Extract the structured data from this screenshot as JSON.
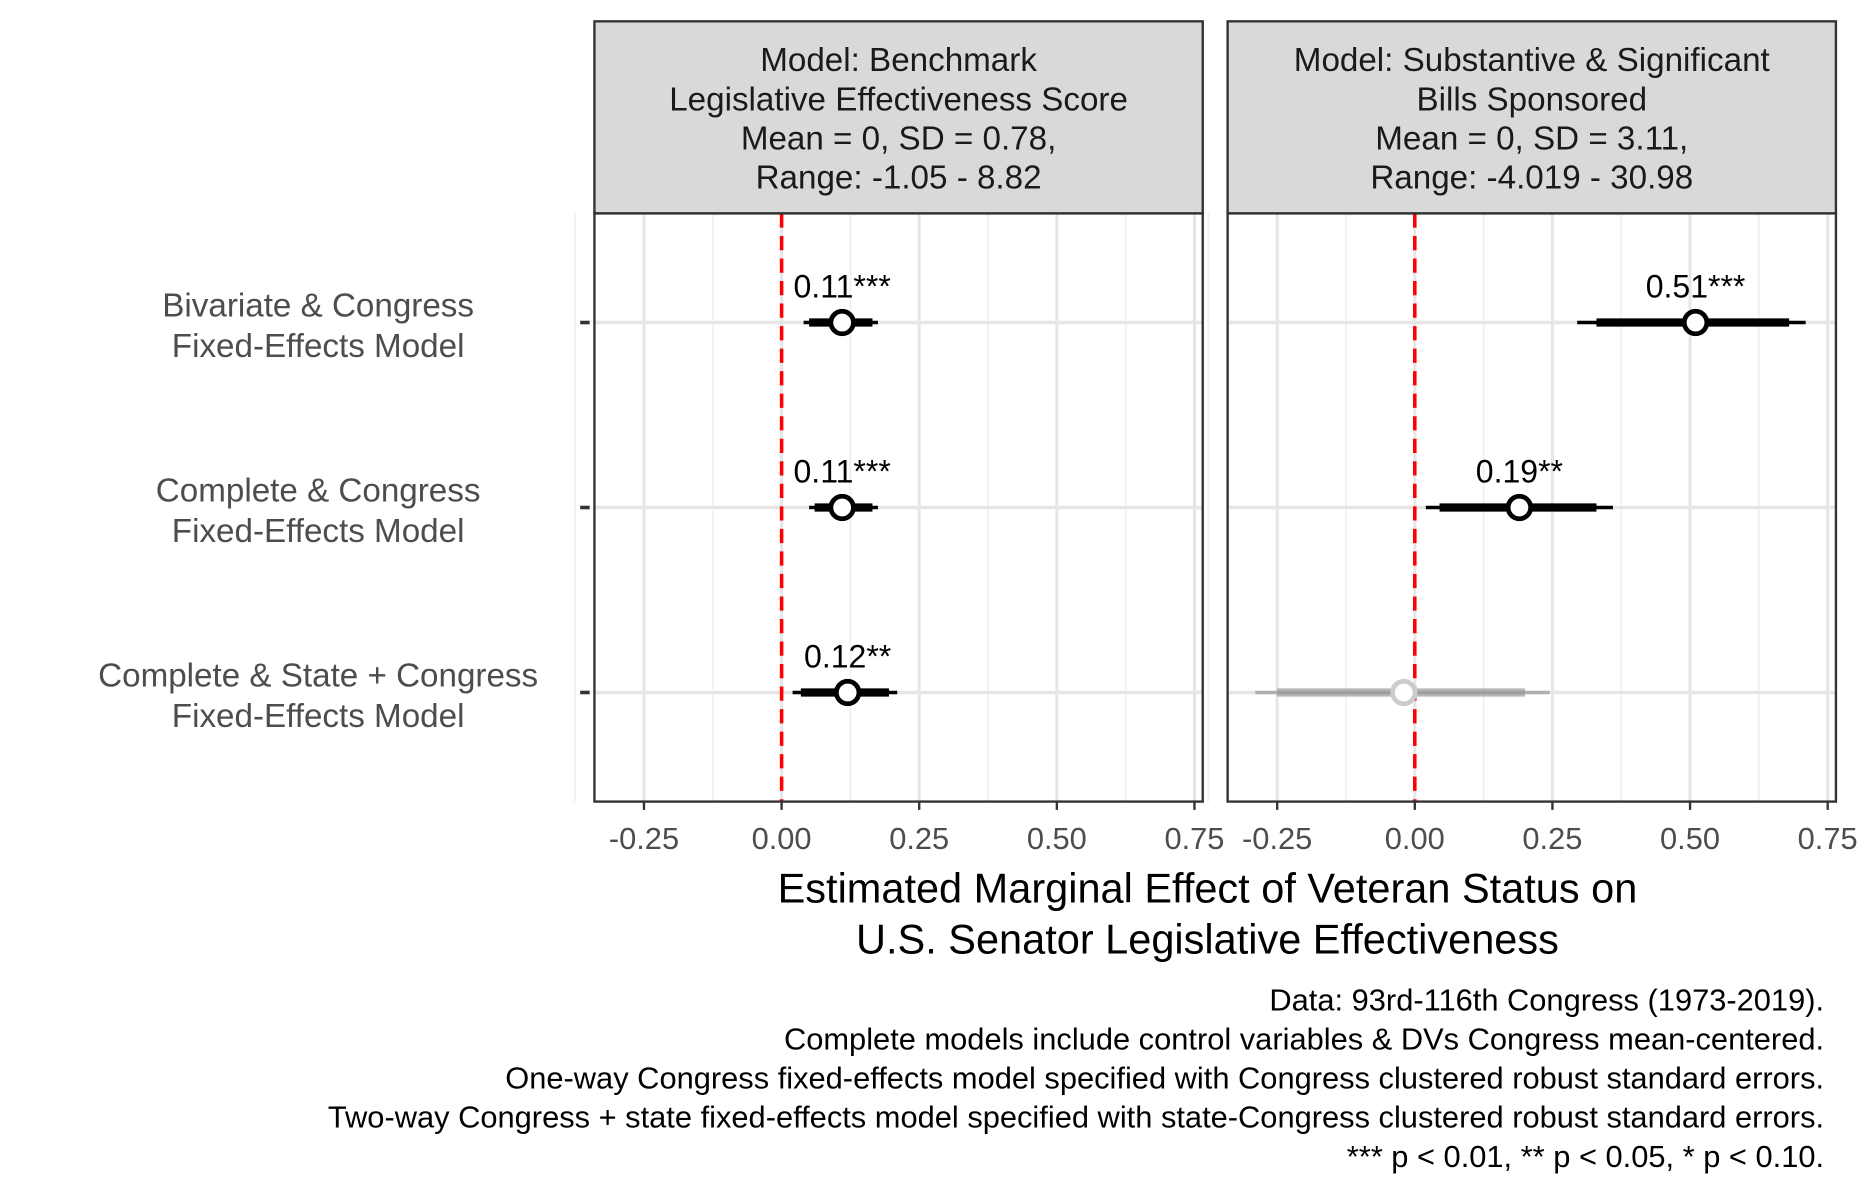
{
  "chart_data": {
    "type": "coefficient-plot",
    "xlabel": [
      "Estimated Marginal Effect of Veteran Status on",
      "U.S. Senator Legislative Effectiveness"
    ],
    "xlim": [
      -0.34,
      0.765
    ],
    "xticks": [
      "-0.25",
      "0.00",
      "0.25",
      "0.50",
      "0.75"
    ],
    "xtick_values": [
      -0.25,
      0,
      0.25,
      0.5,
      0.75
    ],
    "reference_line": 0,
    "reference_color": "#ff0000",
    "y_categories": [
      [
        "Bivariate & Congress",
        "Fixed-Effects Model"
      ],
      [
        "Complete & Congress",
        "Fixed-Effects Model"
      ],
      [
        "Complete & State + Congress",
        "Fixed-Effects Model"
      ]
    ],
    "panels": [
      {
        "strip": [
          "Model: Benchmark",
          "Legislative Effectiveness Score",
          "Mean = 0, SD = 0.78,",
          "Range: -1.05 - 8.82"
        ],
        "points": [
          {
            "estimate": 0.11,
            "ci90": [
              0.05,
              0.165
            ],
            "ci95": [
              0.04,
              0.175
            ],
            "label": "0.11***",
            "significant": true
          },
          {
            "estimate": 0.11,
            "ci90": [
              0.06,
              0.165
            ],
            "ci95": [
              0.05,
              0.175
            ],
            "label": "0.11***",
            "significant": true
          },
          {
            "estimate": 0.12,
            "ci90": [
              0.035,
              0.195
            ],
            "ci95": [
              0.02,
              0.21
            ],
            "label": "0.12**",
            "significant": true
          }
        ]
      },
      {
        "strip": [
          "Model: Substantive & Significant",
          "Bills Sponsored",
          "Mean = 0, SD = 3.11,",
          "Range: -4.019 - 30.98"
        ],
        "points": [
          {
            "estimate": 0.51,
            "ci90": [
              0.33,
              0.68
            ],
            "ci95": [
              0.295,
              0.71
            ],
            "label": "0.51***",
            "significant": true
          },
          {
            "estimate": 0.19,
            "ci90": [
              0.045,
              0.33
            ],
            "ci95": [
              0.02,
              0.36
            ],
            "label": "0.19**",
            "significant": true
          },
          {
            "estimate": -0.02,
            "ci90": [
              -0.25,
              0.2
            ],
            "ci95": [
              -0.29,
              0.245
            ],
            "label": "",
            "significant": false
          }
        ]
      }
    ],
    "caption": [
      "Data: 93rd-116th Congress (1973-2019).",
      "Complete models include control variables & DVs Congress mean-centered.",
      "One-way Congress fixed-effects model specified with Congress clustered robust standard errors.",
      "Two-way Congress + state fixed-effects model specified with state-Congress clustered robust standard errors.",
      "*** p < 0.01, ** p < 0.05, * p < 0.10."
    ]
  }
}
